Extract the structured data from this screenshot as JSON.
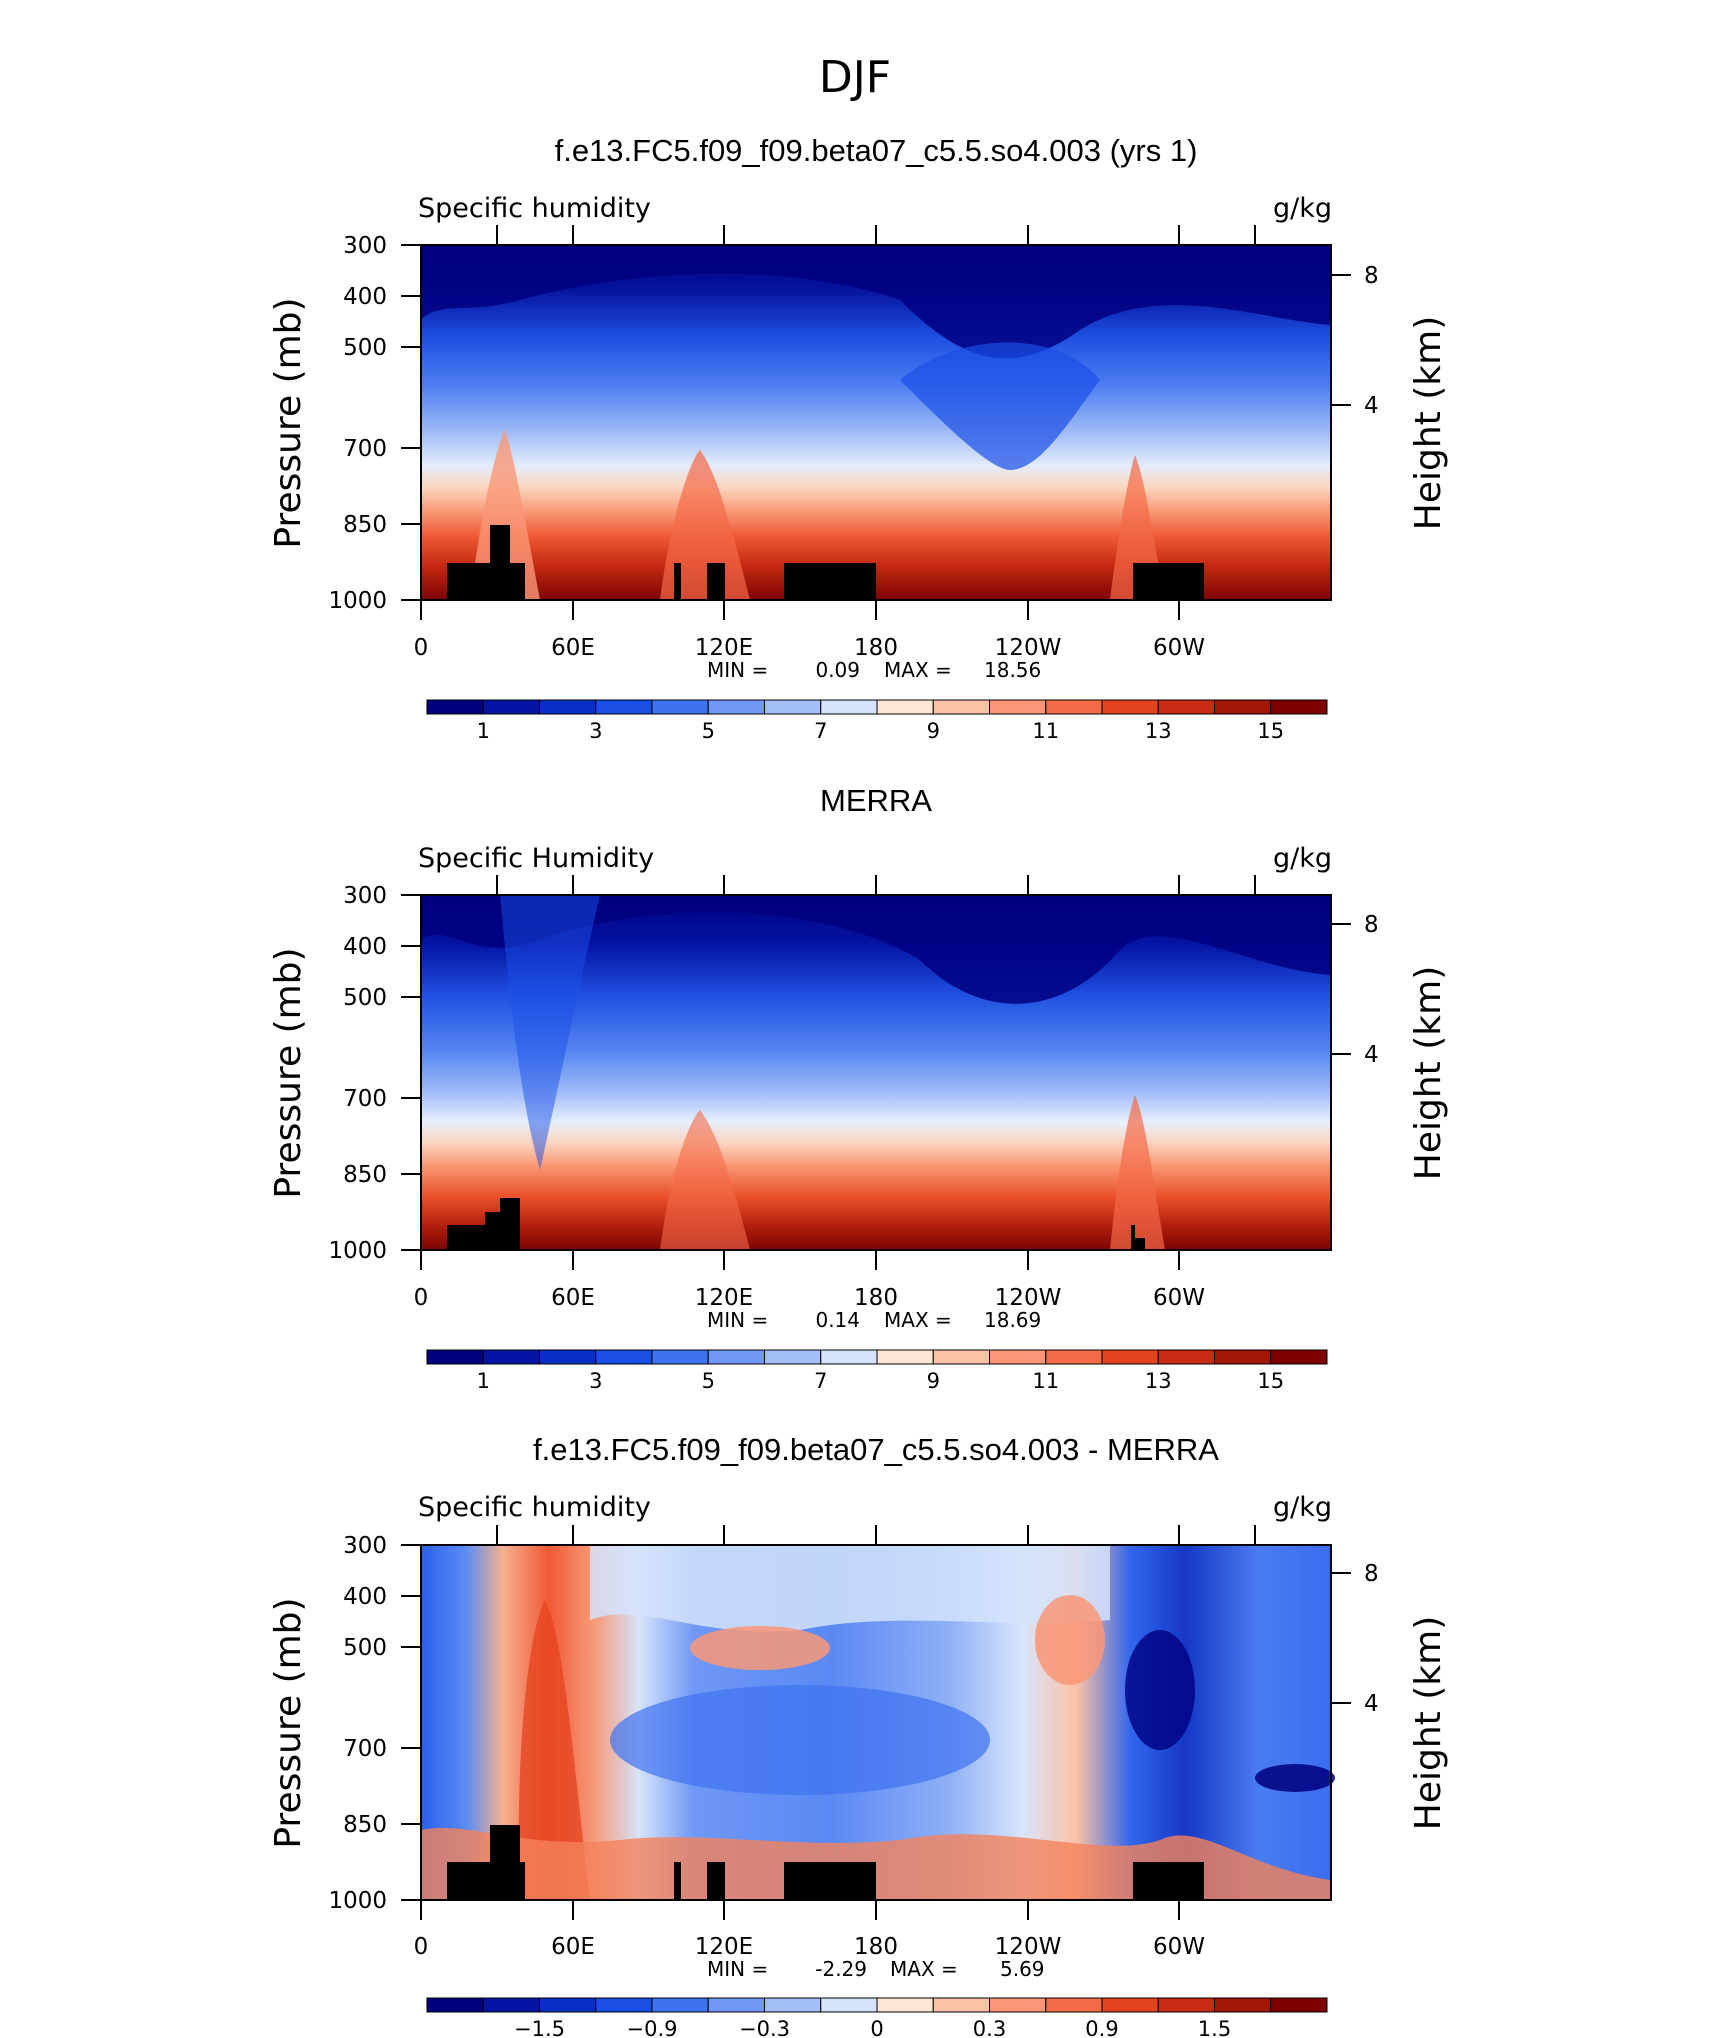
{
  "figure": {
    "season": "DJF"
  },
  "chart_data": [
    {
      "type": "heatmap",
      "title": "f.e13.FC5.f09_f09.beta07_c5.5.so4.003 (yrs 1)",
      "variable_label": "Specific humidity",
      "units": "g/kg",
      "ylabel": "Pressure (mb)",
      "y2label": "Height (km)",
      "x_ticks": [
        "0",
        "60E",
        "120E",
        "180",
        "120W",
        "60W"
      ],
      "y_ticks": [
        "300",
        "400",
        "500",
        "700",
        "850",
        "1000"
      ],
      "y2_ticks": [
        "8",
        "4"
      ],
      "ylim": [
        1000,
        300
      ],
      "stats": {
        "min_label": "MIN =",
        "min": "0.09",
        "max_label": "MAX =",
        "max": "18.56"
      },
      "colorbar": {
        "labels": [
          "1",
          "3",
          "5",
          "7",
          "9",
          "11",
          "13",
          "15"
        ],
        "colors": [
          "#00007f",
          "#0514a4",
          "#0a2dc7",
          "#1a4fe6",
          "#3e72f0",
          "#6f98f5",
          "#a3bef8",
          "#d4e3fb",
          "#fde6d4",
          "#fcc2a6",
          "#f99777",
          "#f46a47",
          "#e5431f",
          "#c72b12",
          "#a01608",
          "#7d0303"
        ]
      }
    },
    {
      "type": "heatmap",
      "title": "MERRA",
      "variable_label": "Specific Humidity",
      "units": "g/kg",
      "ylabel": "Pressure (mb)",
      "y2label": "Height (km)",
      "x_ticks": [
        "0",
        "60E",
        "120E",
        "180",
        "120W",
        "60W"
      ],
      "y_ticks": [
        "300",
        "400",
        "500",
        "700",
        "850",
        "1000"
      ],
      "y2_ticks": [
        "8",
        "4"
      ],
      "ylim": [
        1000,
        300
      ],
      "stats": {
        "min_label": "MIN =",
        "min": "0.14",
        "max_label": "MAX =",
        "max": "18.69"
      },
      "colorbar": {
        "labels": [
          "1",
          "3",
          "5",
          "7",
          "9",
          "11",
          "13",
          "15"
        ],
        "colors": [
          "#00007f",
          "#0514a4",
          "#0a2dc7",
          "#1a4fe6",
          "#3e72f0",
          "#6f98f5",
          "#a3bef8",
          "#d4e3fb",
          "#fde6d4",
          "#fcc2a6",
          "#f99777",
          "#f46a47",
          "#e5431f",
          "#c72b12",
          "#a01608",
          "#7d0303"
        ]
      }
    },
    {
      "type": "heatmap",
      "title": "f.e13.FC5.f09_f09.beta07_c5.5.so4.003 - MERRA",
      "variable_label": "Specific humidity",
      "units": "g/kg",
      "ylabel": "Pressure (mb)",
      "y2label": "Height (km)",
      "x_ticks": [
        "0",
        "60E",
        "120E",
        "180",
        "120W",
        "60W"
      ],
      "y_ticks": [
        "300",
        "400",
        "500",
        "700",
        "850",
        "1000"
      ],
      "y2_ticks": [
        "8",
        "4"
      ],
      "ylim": [
        1000,
        300
      ],
      "stats": {
        "min_label": "MIN =",
        "min": "-2.29",
        "max_label": "MAX =",
        "max": "5.69"
      },
      "colorbar": {
        "labels": [
          "−1.5",
          "−0.9",
          "−0.3",
          "0",
          "0.3",
          "0.9",
          "1.5"
        ],
        "colors": [
          "#00007f",
          "#0514a4",
          "#0a2dc7",
          "#1a4fe6",
          "#3e72f0",
          "#6f98f5",
          "#a3bef8",
          "#d4e3fb",
          "#fde6d4",
          "#fcc2a6",
          "#f99777",
          "#f46a47",
          "#e5431f",
          "#c72b12",
          "#a01608",
          "#7d0303"
        ]
      }
    }
  ]
}
